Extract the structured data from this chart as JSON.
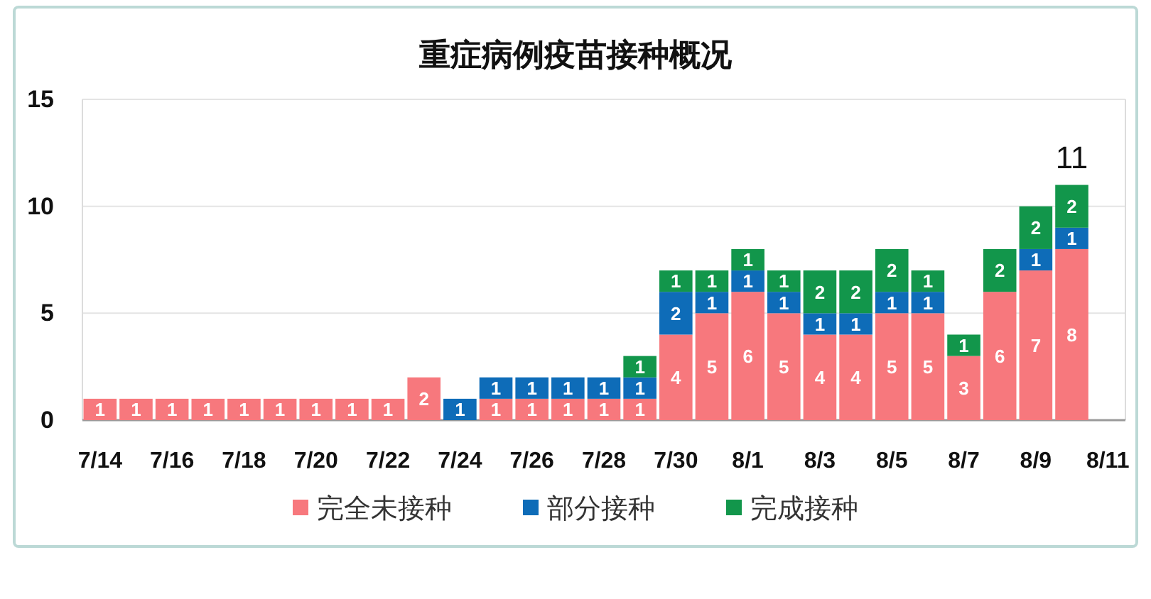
{
  "chart_data": {
    "type": "bar",
    "title": "重症病例疫苗接种概况",
    "stacked": true,
    "categories": [
      "7/14",
      null,
      "7/16",
      null,
      "7/18",
      null,
      "7/20",
      null,
      "7/22",
      null,
      "7/24",
      null,
      "7/26",
      null,
      "7/28",
      null,
      "7/30",
      null,
      "8/1",
      null,
      "8/3",
      null,
      "8/5",
      null,
      "8/7",
      null,
      "8/9",
      null,
      "8/11"
    ],
    "series": [
      {
        "name": "完全未接种",
        "color": "#f7787d",
        "values": [
          1,
          1,
          1,
          1,
          1,
          1,
          1,
          1,
          1,
          2,
          null,
          1,
          1,
          1,
          1,
          1,
          4,
          5,
          6,
          5,
          4,
          4,
          5,
          5,
          3,
          6,
          7,
          8,
          null
        ]
      },
      {
        "name": "部分接种",
        "color": "#0e6cb8",
        "values": [
          null,
          null,
          null,
          null,
          null,
          null,
          null,
          null,
          null,
          null,
          1,
          1,
          1,
          1,
          1,
          1,
          2,
          1,
          1,
          1,
          1,
          1,
          1,
          1,
          null,
          null,
          1,
          1,
          null
        ]
      },
      {
        "name": "完成接种",
        "color": "#12964b",
        "values": [
          null,
          null,
          null,
          null,
          null,
          null,
          null,
          null,
          null,
          null,
          null,
          null,
          null,
          null,
          null,
          1,
          1,
          1,
          1,
          1,
          2,
          2,
          2,
          1,
          1,
          2,
          2,
          2,
          null
        ]
      }
    ],
    "totals": [
      null,
      null,
      null,
      null,
      null,
      null,
      null,
      null,
      null,
      null,
      null,
      null,
      null,
      null,
      null,
      null,
      null,
      null,
      null,
      null,
      null,
      null,
      null,
      null,
      null,
      null,
      null,
      "11",
      null
    ],
    "ylim": [
      0,
      15
    ],
    "yticks": [
      0,
      5,
      10,
      15
    ],
    "grid": "y",
    "legend": "bottom",
    "data_labels": true
  }
}
